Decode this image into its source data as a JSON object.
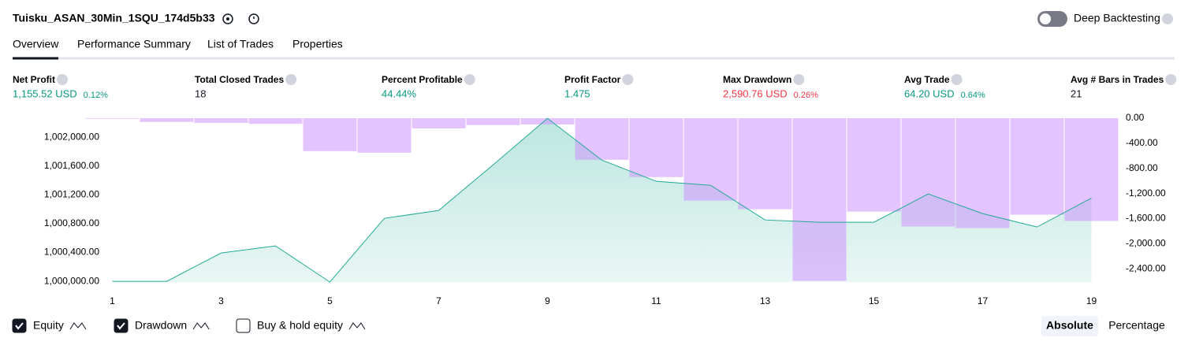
{
  "header": {
    "title": "Tuisku_ASAN_30Min_1SQU_174d5b33",
    "toggle_label": "Deep Backtesting"
  },
  "tabs": [
    "Overview",
    "Performance Summary",
    "List of Trades",
    "Properties"
  ],
  "metrics": [
    {
      "label": "Net Profit",
      "value": "1,155.52 USD",
      "pct": "0.12%",
      "color": "#089981"
    },
    {
      "label": "Total Closed Trades",
      "value": "18",
      "color": "#131722"
    },
    {
      "label": "Percent Profitable",
      "value": "44.44%",
      "color": "#089981"
    },
    {
      "label": "Profit Factor",
      "value": "1.475",
      "color": "#089981"
    },
    {
      "label": "Max Drawdown",
      "value": "2,590.76 USD",
      "pct": "0.26%",
      "color": "#f23645"
    },
    {
      "label": "Avg Trade",
      "value": "64.20 USD",
      "pct": "0.64%",
      "color": "#089981"
    },
    {
      "label": "Avg # Bars in Trades",
      "value": "21",
      "color": "#131722"
    }
  ],
  "chart_data": {
    "type": "line",
    "x": [
      1,
      2,
      3,
      4,
      5,
      6,
      7,
      8,
      9,
      10,
      11,
      12,
      13,
      14,
      15,
      16,
      17,
      18,
      19
    ],
    "xlim": [
      0.5,
      19.5
    ],
    "xticks": [
      1,
      3,
      5,
      7,
      9,
      11,
      13,
      15,
      17,
      19
    ],
    "ylim": [
      999990,
      1002265
    ],
    "yticks": [
      {
        "value": 1000000,
        "label": "1,000,000.00"
      },
      {
        "value": 1000400,
        "label": "1,000,400.00"
      },
      {
        "value": 1000800,
        "label": "1,000,800.00"
      },
      {
        "value": 1001200,
        "label": "1,001,200.00"
      },
      {
        "value": 1001600,
        "label": "1,001,600.00"
      },
      {
        "value": 1002000,
        "label": "1,002,000.00"
      }
    ],
    "y2lim": [
      -2610,
      0
    ],
    "y2ticks": [
      {
        "value": 0,
        "label": "0.00"
      },
      {
        "value": -400,
        "label": "-400.00"
      },
      {
        "value": -800,
        "label": "-800.00"
      },
      {
        "value": -1200,
        "label": "-1,200.00"
      },
      {
        "value": -1600,
        "label": "-1,600.00"
      },
      {
        "value": -2000,
        "label": "-2,000.00"
      },
      {
        "value": -2400,
        "label": "-2,400.00"
      }
    ],
    "series": [
      {
        "name": "Equity",
        "type": "area",
        "color": "#22ab94",
        "values": [
          1000000,
          1000000,
          1000393,
          1000492,
          999990,
          1000874,
          1000984,
          1001617,
          1002262,
          1001683,
          1001388,
          1001333,
          1000852,
          1000820,
          1000820,
          1001213,
          1000940,
          1000754,
          1001155.52
        ]
      },
      {
        "name": "Drawdown",
        "type": "bar",
        "axis": "y2",
        "color": "#ce93ff",
        "values": [
          -10,
          -60,
          -75,
          -90,
          -525,
          -550,
          -163,
          -110,
          -100,
          -663,
          -938,
          -1313,
          -1450,
          -2590.76,
          -1488,
          -1725,
          -1750,
          -1538,
          -1638
        ]
      }
    ],
    "extra_legend": "Buy & hold equity",
    "modes": [
      "Absolute",
      "Percentage"
    ]
  }
}
